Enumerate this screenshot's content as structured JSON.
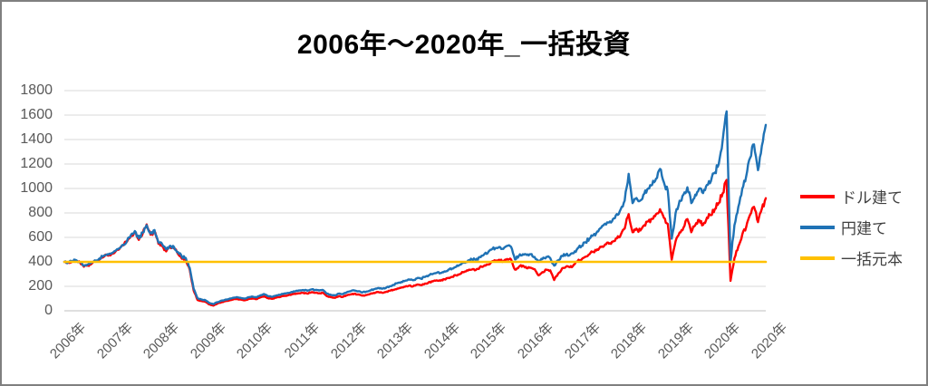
{
  "title": "2006年～2020年_一括投資",
  "chart_data": {
    "type": "line",
    "title": "2006年～2020年_一括投資",
    "x_unit": "monthly points from Jan 2006 to Dec 2020",
    "x_tick_labels": [
      "2006年",
      "2007年",
      "2008年",
      "2009年",
      "2010年",
      "2011年",
      "2012年",
      "2013年",
      "2014年",
      "2015年",
      "2016年",
      "2017年",
      "2018年",
      "2019年",
      "2020年",
      "2020年"
    ],
    "y_tick_labels": [
      "0",
      "200",
      "400",
      "600",
      "800",
      "1000",
      "1200",
      "1400",
      "1600",
      "1800"
    ],
    "y_ticks": [
      0,
      200,
      400,
      600,
      800,
      1000,
      1200,
      1400,
      1600,
      1800
    ],
    "ylim": [
      0,
      1800
    ],
    "grid": "horizontal",
    "legend_position": "right",
    "series": [
      {
        "name": "ドル建て",
        "color": "#ff0000",
        "values": [
          400,
          393,
          401,
          411,
          394,
          361,
          371,
          386,
          401,
          420,
          440,
          454,
          462,
          482,
          503,
          534,
          566,
          615,
          648,
          580,
          632,
          706,
          622,
          650,
          548,
          528,
          486,
          518,
          508,
          465,
          425,
          418,
          335,
          165,
          88,
          80,
          74,
          52,
          42,
          58,
          68,
          78,
          84,
          92,
          98,
          92,
          86,
          96,
          100,
          95,
          109,
          118,
          103,
          98,
          107,
          112,
          121,
          126,
          133,
          138,
          143,
          147,
          141,
          151,
          147,
          143,
          147,
          120,
          111,
          106,
          119,
          113,
          126,
          134,
          139,
          134,
          124,
          129,
          137,
          146,
          154,
          149,
          153,
          164,
          172,
          182,
          190,
          198,
          206,
          200,
          214,
          209,
          222,
          233,
          241,
          249,
          246,
          258,
          269,
          277,
          289,
          301,
          317,
          329,
          337,
          333,
          353,
          365,
          377,
          400,
          409,
          417,
          405,
          424,
          419,
          336,
          360,
          370,
          348,
          352,
          340,
          290,
          316,
          336,
          330,
          252,
          302,
          346,
          360,
          356,
          376,
          406,
          420,
          442,
          462,
          482,
          502,
          522,
          542,
          548,
          566,
          592,
          622,
          672,
          790,
          642,
          672,
          656,
          700,
          732,
          752,
          790,
          830,
          760,
          710,
          418,
          570,
          640,
          680,
          750,
          642,
          700,
          742,
          702,
          762,
          782,
          832,
          882,
          960,
          1070,
          245,
          430,
          525,
          625,
          685,
          785,
          850,
          725,
          835,
          920
        ]
      },
      {
        "name": "円建て",
        "color": "#1f72b5",
        "values": [
          400,
          396,
          404,
          414,
          398,
          368,
          378,
          394,
          410,
          428,
          448,
          462,
          470,
          490,
          510,
          540,
          572,
          620,
          652,
          592,
          640,
          700,
          632,
          660,
          560,
          542,
          502,
          532,
          520,
          480,
          442,
          432,
          350,
          180,
          102,
          92,
          86,
          64,
          55,
          70,
          82,
          90,
          96,
          106,
          112,
          106,
          100,
          110,
          116,
          110,
          126,
          136,
          120,
          114,
          124,
          130,
          140,
          146,
          154,
          160,
          166,
          170,
          164,
          174,
          170,
          166,
          170,
          140,
          130,
          126,
          140,
          136,
          150,
          160,
          166,
          160,
          150,
          156,
          166,
          176,
          186,
          180,
          186,
          200,
          212,
          226,
          236,
          246,
          256,
          250,
          266,
          262,
          276,
          290,
          300,
          310,
          308,
          322,
          336,
          346,
          360,
          376,
          396,
          410,
          420,
          416,
          440,
          456,
          470,
          500,
          512,
          522,
          506,
          530,
          524,
          420,
          450,
          462,
          456,
          462,
          440,
          400,
          422,
          440,
          430,
          370,
          412,
          450,
          460,
          456,
          472,
          510,
          530,
          560,
          590,
          618,
          648,
          680,
          712,
          722,
          750,
          790,
          832,
          900,
          1120,
          880,
          922,
          902,
          958,
          1000,
          1030,
          1080,
          1160,
          1050,
          980,
          590,
          800,
          900,
          950,
          1010,
          880,
          950,
          1000,
          962,
          1030,
          1060,
          1130,
          1200,
          1390,
          1630,
          400,
          700,
          850,
          1000,
          1100,
          1250,
          1360,
          1150,
          1350,
          1520
        ]
      },
      {
        "name": "一括元本",
        "color": "#ffc000",
        "constant": 400
      }
    ]
  },
  "legend": {
    "items": [
      {
        "label": "ドル建て",
        "color": "#ff0000"
      },
      {
        "label": "円建て",
        "color": "#1f72b5"
      },
      {
        "label": "一括元本",
        "color": "#ffc000"
      }
    ]
  },
  "style": {
    "grid_color": "#d9d9d9",
    "axis_line_color": "#bfbfbf",
    "axis_text_color": "#595959",
    "border_color": "#7f7f7f",
    "noise_pct": 0.028
  }
}
